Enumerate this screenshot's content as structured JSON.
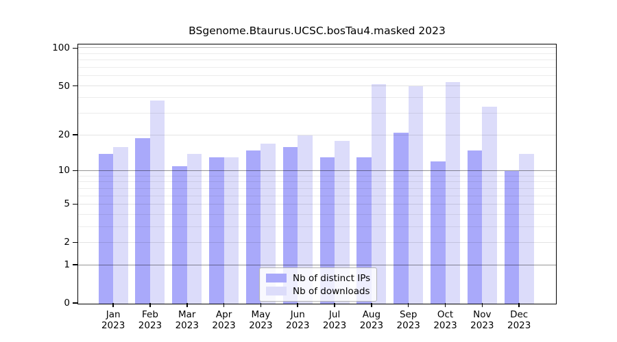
{
  "chart_data": {
    "type": "bar",
    "title": "BSgenome.Btaurus.UCSC.bosTau4.masked 2023",
    "categories": [
      "Jan",
      "Feb",
      "Mar",
      "Apr",
      "May",
      "Jun",
      "Jul",
      "Aug",
      "Sep",
      "Oct",
      "Nov",
      "Dec"
    ],
    "year_label": "2023",
    "series": [
      {
        "name": "Nb of distinct IPs",
        "color": "#a9a9fa",
        "values": [
          14,
          19,
          11,
          13,
          15,
          16,
          13,
          13,
          21,
          12,
          15,
          10
        ]
      },
      {
        "name": "Nb of downloads",
        "color": "#dcdcfa",
        "values": [
          16,
          38,
          14,
          13,
          17,
          20,
          18,
          52,
          50,
          54,
          34,
          14
        ]
      }
    ],
    "xlabel": "",
    "ylabel": "",
    "yticks": [
      0,
      1,
      2,
      5,
      10,
      20,
      50,
      100
    ],
    "gridline_values": [
      1,
      2,
      3,
      4,
      5,
      6,
      7,
      8,
      9,
      10,
      20,
      30,
      40,
      50,
      60,
      70,
      80,
      90,
      100
    ],
    "major_gridlines": [
      1,
      10
    ],
    "scale": "log1p",
    "ylim": [
      0,
      106
    ],
    "grid": true,
    "legend_position": "inside-bottom-center"
  }
}
